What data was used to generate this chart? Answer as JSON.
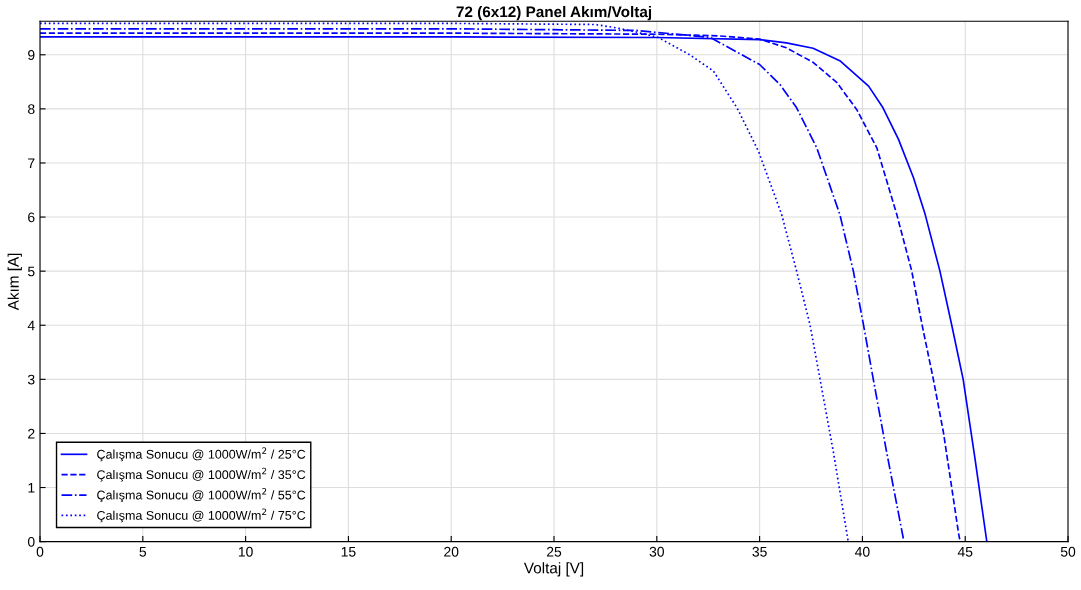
{
  "chart_data": {
    "type": "line",
    "title": "72 (6x12) Panel Akım/Voltaj",
    "xlabel": "Voltaj [V]",
    "ylabel": "Akım [A]",
    "series": [
      {
        "name": "Çalışma Sonucu @ 1000W/m$^{2}$ / 25°C",
        "color": "#0000ff",
        "line_style": "solid",
        "x": [
          0,
          10,
          20,
          30,
          35,
          36.3,
          37.6,
          38.9,
          40.3,
          41.0,
          41.75,
          42.48,
          43.05,
          43.77,
          44.34,
          44.9,
          45.48,
          46.05
        ],
        "values": [
          9.33,
          9.33,
          9.33,
          9.32,
          9.28,
          9.22,
          9.12,
          8.89,
          8.42,
          8.02,
          7.44,
          6.73,
          6.05,
          5.0,
          4.01,
          3.0,
          1.52,
          0
        ]
      },
      {
        "name": "Çalışma Sonucu @ 1000W/m$^{2}$ / 35°C",
        "color": "#0000ff",
        "line_style": "dashed",
        "x": [
          0,
          10,
          20,
          30,
          33,
          35.0,
          36.3,
          37.6,
          38.75,
          39.72,
          40.7,
          41.67,
          42.4,
          42.9,
          43.45,
          43.94,
          44.67,
          44.75
        ],
        "values": [
          9.4,
          9.4,
          9.4,
          9.38,
          9.35,
          9.29,
          9.13,
          8.86,
          8.49,
          7.99,
          7.28,
          6.05,
          5.0,
          4.01,
          3.0,
          2.02,
          0.17,
          0
        ]
      },
      {
        "name": "Çalışma Sonucu @ 1000W/m$^{2}$ / 55°C",
        "color": "#0000ff",
        "line_style": "dashdot",
        "x": [
          0,
          10,
          20,
          29,
          32.6,
          35.0,
          35.99,
          36.8,
          37.78,
          38.9,
          39.56,
          40.05,
          40.53,
          41.18,
          42.02
        ],
        "values": [
          9.48,
          9.48,
          9.48,
          9.45,
          9.32,
          8.82,
          8.45,
          8.02,
          7.28,
          6.05,
          5.0,
          4.01,
          3.0,
          1.65,
          0
        ]
      },
      {
        "name": "Çalışma Sonucu @ 1000W/m$^{2}$ / 75°C",
        "color": "#0000ff",
        "line_style": "dotted",
        "x": [
          0,
          10,
          20,
          27,
          28,
          29,
          30.07,
          31.6,
          32.75,
          33.9,
          34.94,
          36.07,
          36.8,
          37.45,
          37.94,
          38.59,
          39.31
        ],
        "values": [
          9.58,
          9.58,
          9.58,
          9.56,
          9.5,
          9.42,
          9.32,
          9.0,
          8.7,
          8.02,
          7.22,
          6.05,
          5.0,
          4.01,
          3.0,
          1.65,
          0
        ]
      }
    ],
    "xlim": [
      0,
      50
    ],
    "ylim": [
      0,
      9.62
    ],
    "xticks": [
      0,
      5,
      10,
      15,
      20,
      25,
      30,
      35,
      40,
      45,
      50
    ],
    "yticks": [
      0,
      1,
      2,
      3,
      4,
      5,
      6,
      7,
      8,
      9
    ],
    "grid": true,
    "legend": "bottom left",
    "marker": "none"
  }
}
